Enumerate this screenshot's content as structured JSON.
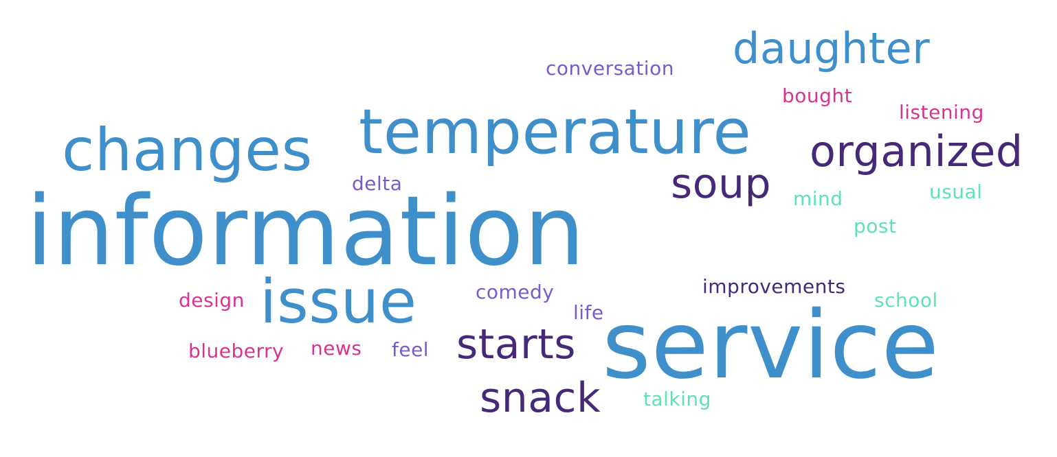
{
  "colors": {
    "blue": "#3f8fcb",
    "dark_purple": "#452978",
    "violet": "#7a5ac9",
    "pink": "#d7348f",
    "mint": "#5fe0b7"
  },
  "words": [
    {
      "text": "information",
      "color": "blue"
    },
    {
      "text": "service",
      "color": "blue"
    },
    {
      "text": "temperature",
      "color": "blue"
    },
    {
      "text": "changes",
      "color": "blue"
    },
    {
      "text": "issue",
      "color": "blue"
    },
    {
      "text": "daughter",
      "color": "blue"
    },
    {
      "text": "organized",
      "color": "dark_purple"
    },
    {
      "text": "soup",
      "color": "dark_purple"
    },
    {
      "text": "starts",
      "color": "dark_purple"
    },
    {
      "text": "snack",
      "color": "dark_purple"
    },
    {
      "text": "conversation",
      "color": "violet"
    },
    {
      "text": "bought",
      "color": "pink"
    },
    {
      "text": "listening",
      "color": "pink"
    },
    {
      "text": "delta",
      "color": "violet"
    },
    {
      "text": "mind",
      "color": "mint"
    },
    {
      "text": "usual",
      "color": "mint"
    },
    {
      "text": "post",
      "color": "mint"
    },
    {
      "text": "improvements",
      "color": "dark_purple"
    },
    {
      "text": "school",
      "color": "mint"
    },
    {
      "text": "comedy",
      "color": "violet"
    },
    {
      "text": "life",
      "color": "violet"
    },
    {
      "text": "design",
      "color": "pink"
    },
    {
      "text": "blueberry",
      "color": "pink"
    },
    {
      "text": "news",
      "color": "pink"
    },
    {
      "text": "feel",
      "color": "violet"
    },
    {
      "text": "talking",
      "color": "mint"
    }
  ]
}
